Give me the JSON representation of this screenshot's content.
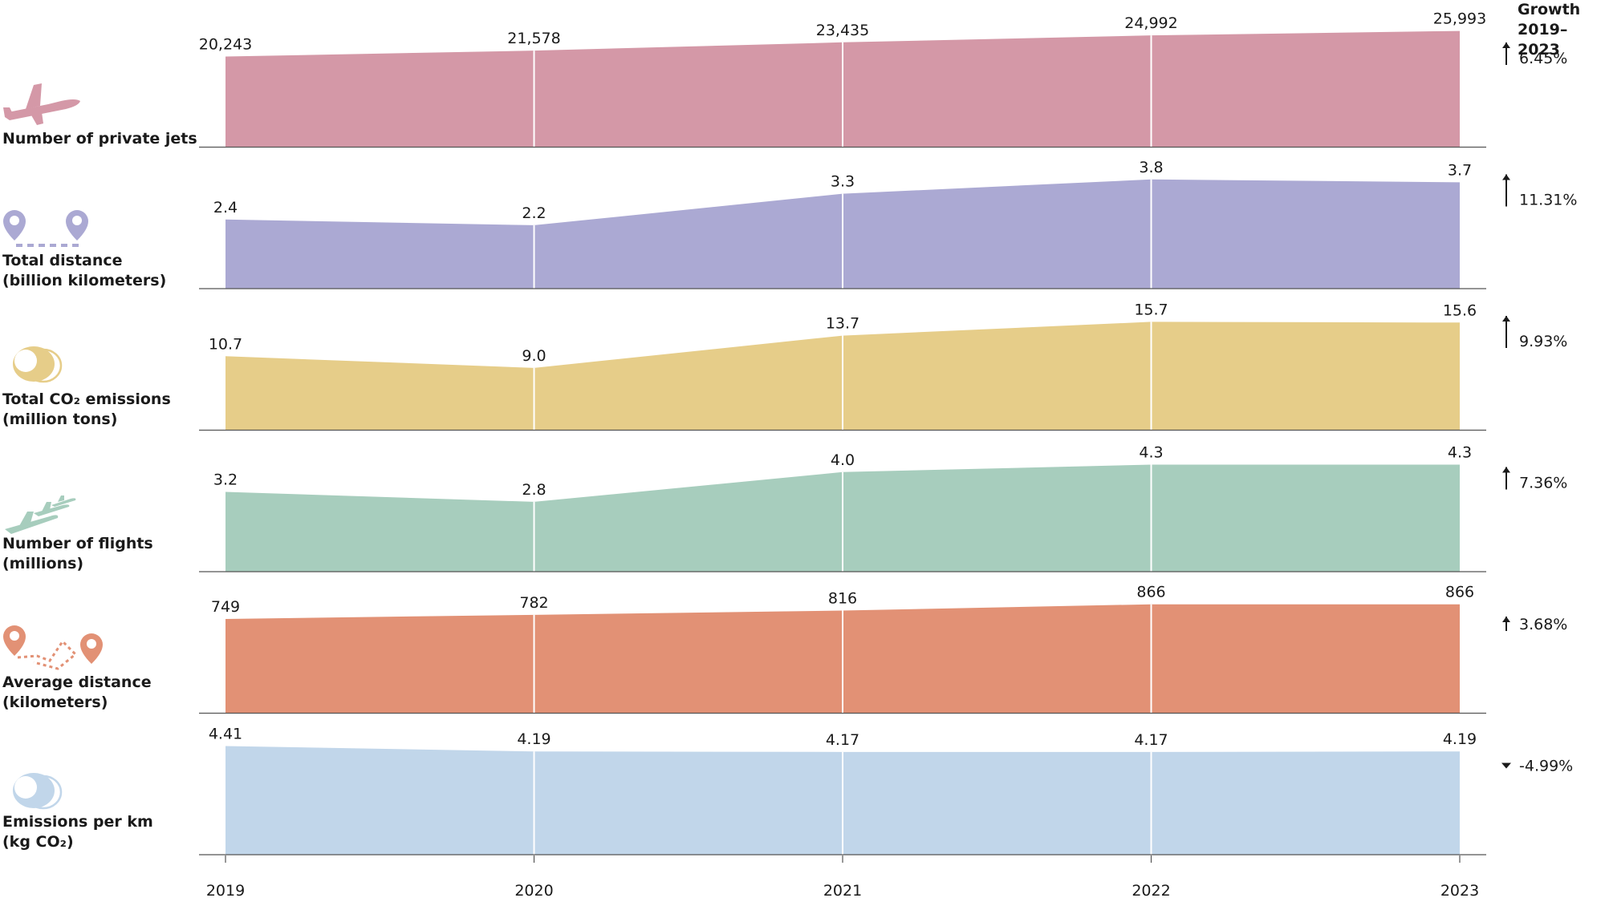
{
  "growth_header": {
    "line1": "Growth",
    "line2": "2019–2023"
  },
  "chart_data": {
    "type": "area",
    "x": [
      "2019",
      "2020",
      "2021",
      "2022",
      "2023"
    ],
    "grid": "vertical",
    "panels": [
      {
        "label_line1": "Number of private jets",
        "label_line2": "",
        "icon": "airplane-icon",
        "color": "#d498a7",
        "values": [
          20243,
          21578,
          23435,
          24992,
          25993
        ],
        "value_labels": [
          "20,243",
          "21,578",
          "23,435",
          "24,992",
          "25,993"
        ],
        "growth": "6.45%",
        "growth_dir": "up",
        "ylim": [
          0,
          27000
        ]
      },
      {
        "label_line1": "Total distance",
        "label_line2": "(billion kilometers)",
        "icon": "map-pins-icon",
        "color": "#aba9d3",
        "values": [
          2.4,
          2.2,
          3.3,
          3.8,
          3.7
        ],
        "value_labels": [
          "2.4",
          "2.2",
          "3.3",
          "3.8",
          "3.7"
        ],
        "growth": "11.31%",
        "growth_dir": "up",
        "ylim": [
          0,
          4.2
        ]
      },
      {
        "label_line1": "Total CO₂ emissions",
        "label_line2": "(million tons)",
        "icon": "co2-cloud-icon",
        "color": "#e6cd89",
        "values": [
          10.7,
          9.0,
          13.7,
          15.7,
          15.6
        ],
        "value_labels": [
          "10.7",
          "9.0",
          "13.7",
          "15.7",
          "15.6"
        ],
        "growth": "9.93%",
        "growth_dir": "up",
        "ylim": [
          0,
          17.5
        ]
      },
      {
        "label_line1": "Number of flights",
        "label_line2": "(millions)",
        "icon": "multiple-planes-icon",
        "color": "#a7cdbd",
        "values": [
          3.2,
          2.8,
          4.0,
          4.3,
          4.3
        ],
        "value_labels": [
          "3.2",
          "2.8",
          "4.0",
          "4.3",
          "4.3"
        ],
        "growth": "7.36%",
        "growth_dir": "up",
        "ylim": [
          0,
          4.85
        ]
      },
      {
        "label_line1": "Average distance",
        "label_line2": "(kilometers)",
        "icon": "route-pins-icon",
        "color": "#e29175",
        "values": [
          749,
          782,
          816,
          866,
          866
        ],
        "value_labels": [
          "749",
          "782",
          "816",
          "866",
          "866"
        ],
        "growth": "3.68%",
        "growth_dir": "up",
        "ylim": [
          0,
          960
        ]
      },
      {
        "label_line1": "Emissions per km",
        "label_line2": "(kg CO₂)",
        "icon": "co2-cloud-blue-icon",
        "color": "#c1d6ea",
        "values": [
          4.41,
          4.19,
          4.17,
          4.17,
          4.19
        ],
        "value_labels": [
          "4.41",
          "4.19",
          "4.17",
          "4.17",
          "4.19"
        ],
        "growth": "-4.99%",
        "growth_dir": "down",
        "ylim": [
          0,
          4.9
        ]
      }
    ]
  }
}
